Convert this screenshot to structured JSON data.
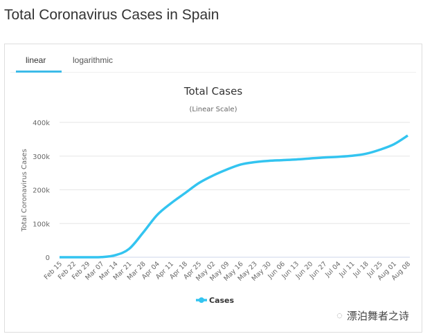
{
  "page_title": "Total Coronavirus Cases in Spain",
  "tabs": [
    {
      "label": "linear",
      "active": true
    },
    {
      "label": "logarithmic",
      "active": false
    }
  ],
  "watermark": "漂泊舞者之诗",
  "colors": {
    "series": "#33c4f0",
    "accent": "#3cbbe8",
    "grid": "#e6e6e6"
  },
  "chart_data": {
    "type": "line",
    "title": "Total Cases",
    "subtitle": "(Linear Scale)",
    "xlabel": "",
    "ylabel": "Total Coronavirus Cases",
    "ylim": [
      0,
      400000
    ],
    "yticks": [
      {
        "v": 0,
        "label": "0"
      },
      {
        "v": 100000,
        "label": "100k"
      },
      {
        "v": 200000,
        "label": "200k"
      },
      {
        "v": 300000,
        "label": "300k"
      },
      {
        "v": 400000,
        "label": "400k"
      }
    ],
    "categories": [
      "Feb 15",
      "Feb 22",
      "Feb 29",
      "Mar 07",
      "Mar 14",
      "Mar 21",
      "Mar 28",
      "Apr 04",
      "Apr 11",
      "Apr 18",
      "Apr 25",
      "May 02",
      "May 09",
      "May 16",
      "May 23",
      "May 30",
      "Jun 06",
      "Jun 13",
      "Jun 20",
      "Jun 27",
      "Jul 04",
      "Jul 11",
      "Jul 18",
      "Jul 25",
      "Aug 01",
      "Aug 08"
    ],
    "series": [
      {
        "name": "Cases",
        "values": [
          2,
          2,
          50,
          500,
          6000,
          25000,
          73000,
          125000,
          160000,
          190000,
          220000,
          242000,
          260000,
          275000,
          282000,
          286000,
          288000,
          290000,
          293000,
          296000,
          298000,
          301000,
          307000,
          319000,
          335000,
          361000
        ]
      }
    ],
    "legend": "bottom-center",
    "grid": true
  }
}
